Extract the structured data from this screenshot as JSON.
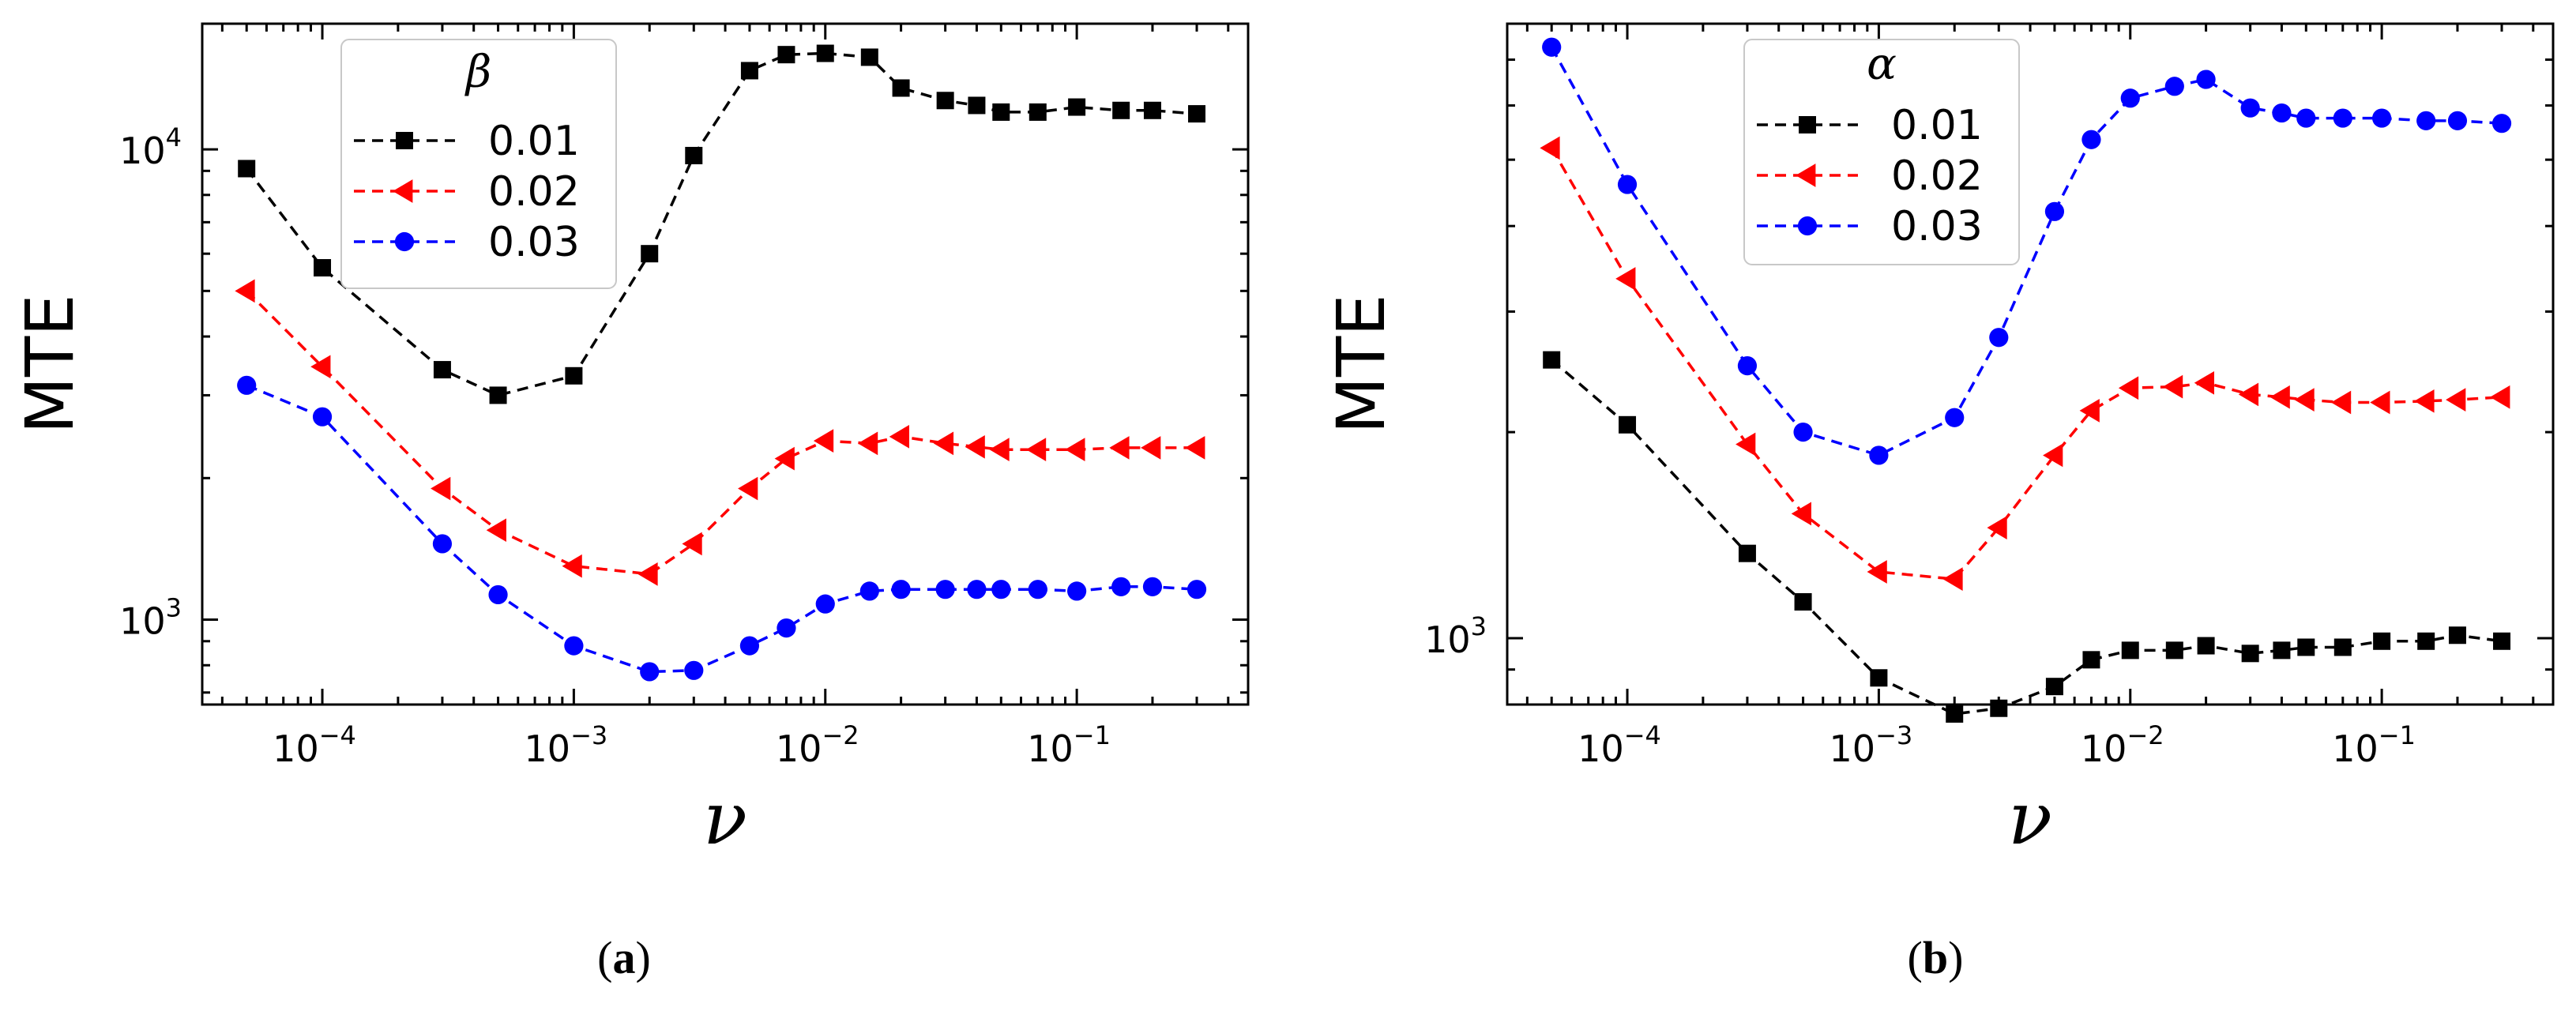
{
  "chart_data": [
    {
      "type": "line",
      "caption": "a",
      "legend_title": "β",
      "ylabel": "MTE",
      "xlabel": "ν",
      "xscale": "log",
      "yscale": "log",
      "xlim": [
        3.33e-05,
        0.48
      ],
      "ylim": [
        660,
        18500
      ],
      "xticks": [
        {
          "base": "10",
          "exp": "−4",
          "value": 0.0001
        },
        {
          "base": "10",
          "exp": "−3",
          "value": 0.001
        },
        {
          "base": "10",
          "exp": "−2",
          "value": 0.01
        },
        {
          "base": "10",
          "exp": "−1",
          "value": 0.1
        }
      ],
      "yticks": [
        {
          "base": "10",
          "exp": "3",
          "value": 1000
        },
        {
          "base": "10",
          "exp": "4",
          "value": 10000
        }
      ],
      "x": [
        5e-05,
        0.0001,
        0.0003,
        0.0005,
        0.001,
        0.002,
        0.003,
        0.005,
        0.007,
        0.01,
        0.015,
        0.02,
        0.03,
        0.04,
        0.05,
        0.07,
        0.1,
        0.15,
        0.2,
        0.3
      ],
      "series": [
        {
          "name": "0.01",
          "color": "#000000",
          "marker": "square",
          "values": [
            9100,
            5600,
            3400,
            3000,
            3300,
            6000,
            9700,
            14700,
            15900,
            16000,
            15700,
            13500,
            12700,
            12400,
            12000,
            12000,
            12300,
            12100,
            12100,
            11900
          ]
        },
        {
          "name": "0.02",
          "color": "#ff0000",
          "marker": "triangle-left",
          "values": [
            5000,
            3450,
            1900,
            1550,
            1300,
            1250,
            1450,
            1900,
            2200,
            2400,
            2370,
            2450,
            2370,
            2330,
            2300,
            2300,
            2300,
            2320,
            2320,
            2320
          ]
        },
        {
          "name": "0.03",
          "color": "#0000ff",
          "marker": "circle",
          "values": [
            3150,
            2700,
            1450,
            1130,
            880,
            775,
            780,
            880,
            960,
            1080,
            1150,
            1160,
            1160,
            1160,
            1160,
            1160,
            1150,
            1175,
            1175,
            1160
          ]
        }
      ]
    },
    {
      "type": "line",
      "caption": "b",
      "legend_title": "α",
      "ylabel": "MTE",
      "xlabel": "ν",
      "xscale": "log",
      "yscale": "log",
      "xlim": [
        3.33e-05,
        0.48
      ],
      "ylim": [
        800,
        7900
      ],
      "xticks": [
        {
          "base": "10",
          "exp": "−4",
          "value": 0.0001
        },
        {
          "base": "10",
          "exp": "−3",
          "value": 0.001
        },
        {
          "base": "10",
          "exp": "−2",
          "value": 0.01
        },
        {
          "base": "10",
          "exp": "−1",
          "value": 0.1
        }
      ],
      "yticks": [
        {
          "base": "10",
          "exp": "3",
          "value": 1000
        }
      ],
      "x": [
        5e-05,
        0.0001,
        0.0003,
        0.0005,
        0.001,
        0.002,
        0.003,
        0.005,
        0.007,
        0.01,
        0.015,
        0.02,
        0.03,
        0.04,
        0.05,
        0.07,
        0.1,
        0.15,
        0.2,
        0.3
      ],
      "series": [
        {
          "name": "0.01",
          "color": "#000000",
          "marker": "square",
          "values": [
            2550,
            2050,
            1330,
            1130,
            875,
            775,
            790,
            850,
            930,
            960,
            960,
            975,
            950,
            960,
            970,
            970,
            990,
            990,
            1010,
            990
          ]
        },
        {
          "name": "0.02",
          "color": "#ff0000",
          "marker": "triangle-left",
          "values": [
            5200,
            3350,
            1920,
            1520,
            1250,
            1220,
            1450,
            1850,
            2150,
            2320,
            2330,
            2360,
            2270,
            2250,
            2230,
            2210,
            2210,
            2220,
            2230,
            2250
          ]
        },
        {
          "name": "0.03",
          "color": "#0000ff",
          "marker": "circle",
          "values": [
            7300,
            4600,
            2500,
            2000,
            1850,
            2100,
            2750,
            4200,
            5350,
            6150,
            6400,
            6550,
            5950,
            5850,
            5750,
            5750,
            5750,
            5700,
            5700,
            5650
          ]
        }
      ]
    }
  ]
}
